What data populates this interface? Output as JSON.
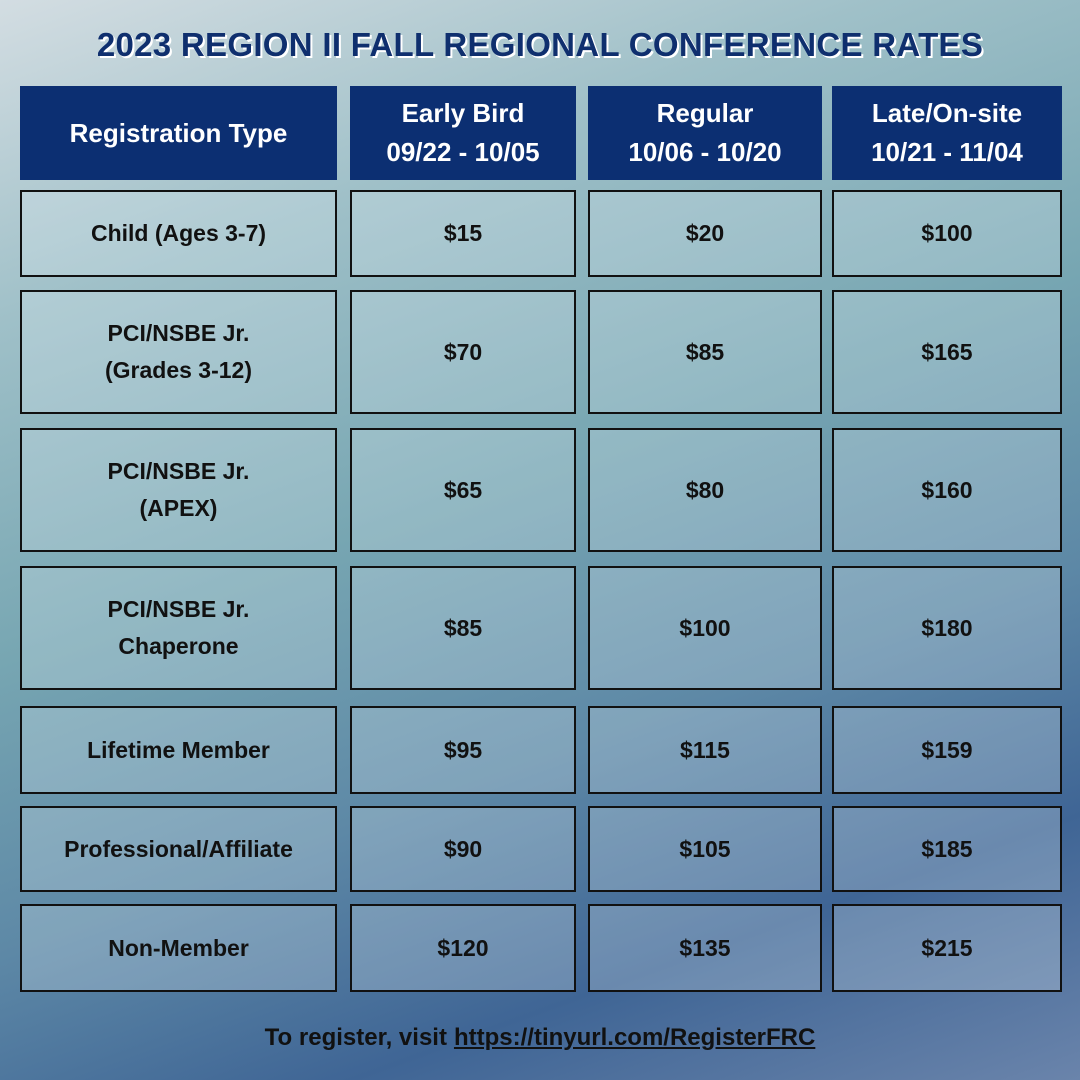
{
  "title": "2023 REGION II FALL REGIONAL CONFERENCE RATES",
  "table": {
    "header": [
      {
        "label": "Registration Type"
      },
      {
        "label": "Early Bird",
        "dates": "09/22 - 10/05"
      },
      {
        "label": "Regular",
        "dates": "10/06 - 10/20"
      },
      {
        "label": "Late/On-site",
        "dates": "10/21 - 11/04"
      }
    ],
    "rows": [
      [
        [
          "Child (Ages 3-7)"
        ],
        "$15",
        "$20",
        "$100"
      ],
      [
        [
          "PCI/NSBE Jr.",
          "(Grades 3-12)"
        ],
        "$70",
        "$85",
        "$165"
      ],
      [
        [
          "PCI/NSBE Jr.",
          "(APEX)"
        ],
        "$65",
        "$80",
        "$160"
      ],
      [
        [
          "PCI/NSBE Jr.",
          "Chaperone"
        ],
        "$85",
        "$100",
        "$180"
      ],
      [
        [
          "Lifetime Member"
        ],
        "$95",
        "$115",
        "$159"
      ],
      [
        [
          "Professional/Affiliate"
        ],
        "$90",
        "$105",
        "$185"
      ],
      [
        [
          "Non-Member"
        ],
        "$120",
        "$135",
        "$215"
      ]
    ]
  },
  "footer": {
    "text": "To register, visit",
    "link": "https://tinyurl.com/RegisterFRC"
  }
}
